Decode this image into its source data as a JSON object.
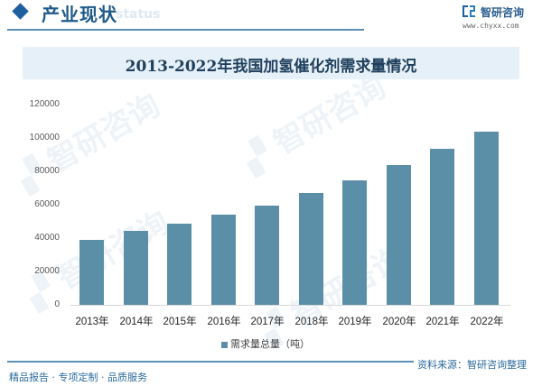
{
  "header": {
    "section_title": "产业现状",
    "section_ghost": "status",
    "brand_name": "智研咨询",
    "brand_url": "www.chyxx.com"
  },
  "footer": {
    "left_text": "精品报告 · 专项定制 · 品质服务",
    "right_text": "资料来源：智研咨询整理"
  },
  "colors": {
    "bar": "#5b8fa8",
    "accent": "#1f5fa0",
    "title_band": "#e6f0f8"
  },
  "chart_data": {
    "type": "bar",
    "title": "2013-2022年我国加氢催化剂需求量情况",
    "xlabel": "",
    "ylabel": "",
    "categories": [
      "2013年",
      "2014年",
      "2015年",
      "2016年",
      "2017年",
      "2018年",
      "2019年",
      "2020年",
      "2021年",
      "2022年"
    ],
    "series": [
      {
        "name": "需求量总量（吨）",
        "values": [
          39000,
          44000,
          48500,
          54000,
          59000,
          66700,
          74500,
          83500,
          93000,
          103500
        ]
      }
    ],
    "yticks": [
      "0",
      "20000",
      "40000",
      "60000",
      "80000",
      "100000",
      "120000"
    ],
    "ylim": [
      0,
      120000
    ],
    "grid": false,
    "legend_position": "bottom"
  }
}
